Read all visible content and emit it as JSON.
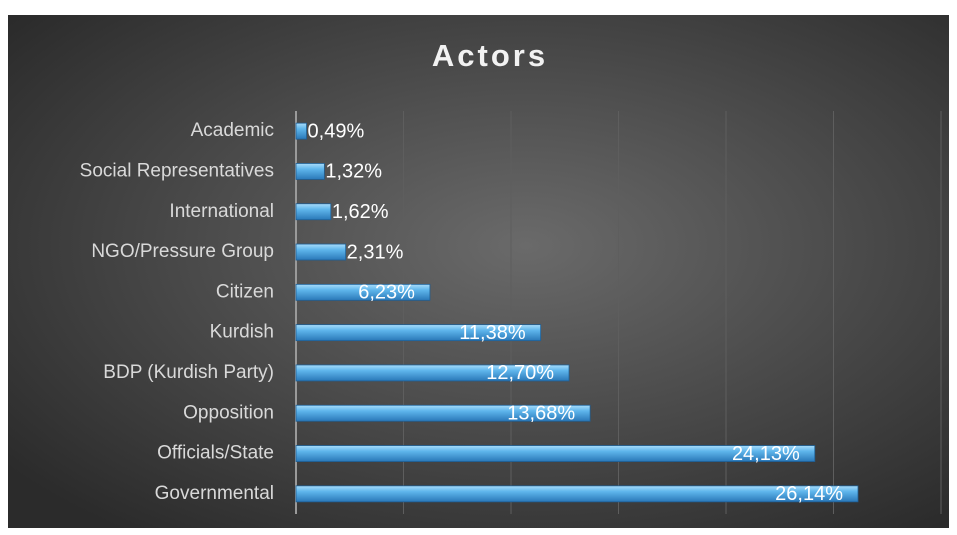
{
  "chart_data": {
    "type": "hbar",
    "title": "Actors",
    "categories": [
      "Academic",
      "Social Representatives",
      "International",
      "NGO/Pressure Group",
      "Citizen",
      "Kurdish",
      "BDP (Kurdish Party)",
      "Opposition",
      "Officials/State",
      "Governmental"
    ],
    "values": [
      0.49,
      1.32,
      1.62,
      2.31,
      6.23,
      11.38,
      12.7,
      13.68,
      24.13,
      26.14
    ],
    "value_labels": [
      "0,49%",
      "1,32%",
      "1,62%",
      "2,31%",
      "6,23%",
      "11,38%",
      "12,70%",
      "13,68%",
      "24,13%",
      "26,14%"
    ],
    "color": "#4aa3df",
    "xlim": [
      0,
      30
    ],
    "xticks": [
      0,
      5,
      10,
      15,
      20,
      25,
      30
    ],
    "grid": true
  }
}
